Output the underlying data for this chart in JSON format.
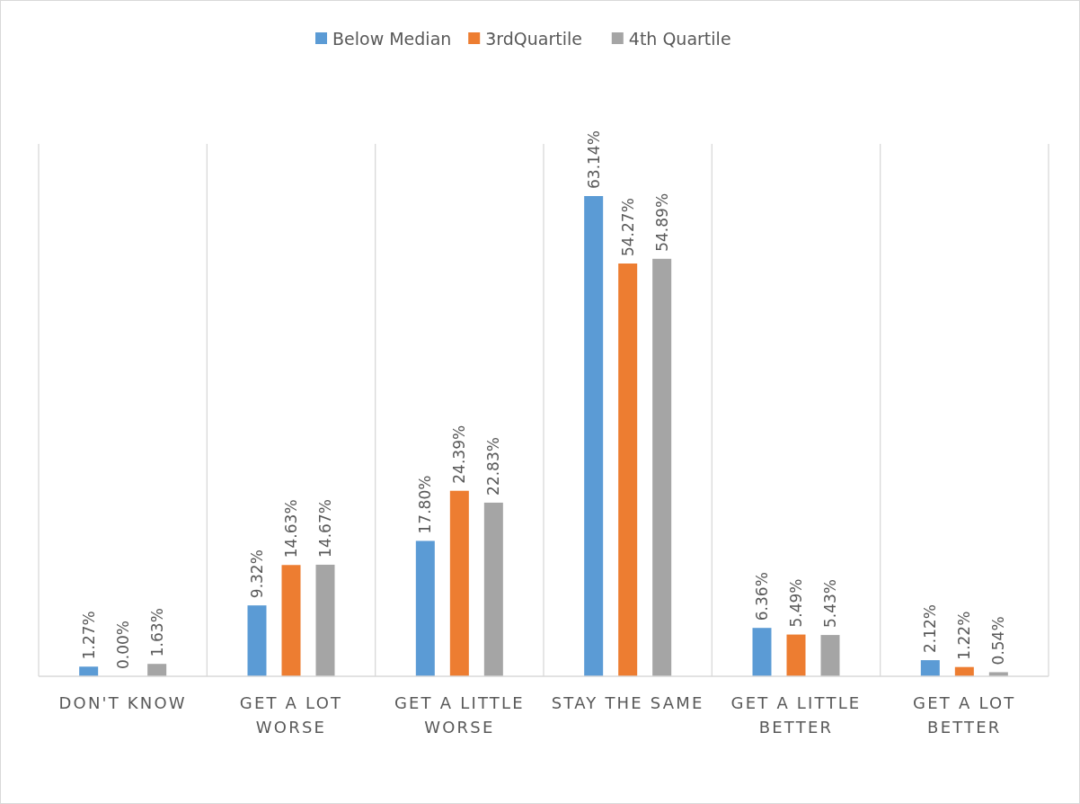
{
  "chart_data": {
    "type": "bar",
    "categories": [
      "DON'T KNOW",
      "GET A LOT WORSE",
      "GET A LITTLE WORSE",
      "STAY THE SAME",
      "GET A LITTLE BETTER",
      "GET A LOT BETTER"
    ],
    "series": [
      {
        "name": "Below Median",
        "color": "#5b9bd5",
        "values": [
          1.27,
          9.32,
          17.8,
          63.14,
          6.36,
          2.12
        ],
        "value_labels": [
          "1.27%",
          "9.32%",
          "17.80%",
          "63.14%",
          "6.36%",
          "2.12%"
        ]
      },
      {
        "name": "3rdQuartile",
        "color": "#ed7d31",
        "values": [
          0.0,
          14.63,
          24.39,
          54.27,
          5.49,
          1.22
        ],
        "value_labels": [
          "0.00%",
          "14.63%",
          "24.39%",
          "54.27%",
          "5.49%",
          "1.22%"
        ]
      },
      {
        "name": "4th Quartile",
        "color": "#a5a5a5",
        "values": [
          1.63,
          14.67,
          22.83,
          54.89,
          5.43,
          0.54
        ],
        "value_labels": [
          "1.63%",
          "14.67%",
          "22.83%",
          "54.89%",
          "5.43%",
          "0.54%"
        ]
      }
    ],
    "grid": "x",
    "legend": "top"
  }
}
